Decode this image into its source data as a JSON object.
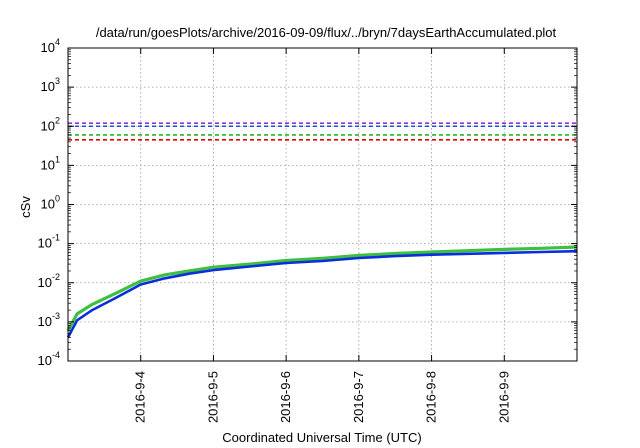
{
  "chart_data": {
    "type": "line",
    "title": "/data/run/goesPlots/archive/2016-09-09/flux/../bryn/7daysEarthAccumulated.plot",
    "xlabel": "Coordinated Universal Time (UTC)",
    "ylabel": "cSv",
    "xlim": [
      "2016-09-03",
      "2016-09-10"
    ],
    "x_ticks": [
      "2016-9-4",
      "2016-9-5",
      "2016-9-6",
      "2016-9-7",
      "2016-9-8",
      "2016-9-9"
    ],
    "yscale": "log",
    "ylim": [
      0.0001,
      10000
    ],
    "y_ticks": [
      {
        "base": "10",
        "exp": "-4"
      },
      {
        "base": "10",
        "exp": "-3"
      },
      {
        "base": "10",
        "exp": "-2"
      },
      {
        "base": "10",
        "exp": "-1"
      },
      {
        "base": "10",
        "exp": "0"
      },
      {
        "base": "10",
        "exp": "1"
      },
      {
        "base": "10",
        "exp": "2"
      },
      {
        "base": "10",
        "exp": "3"
      },
      {
        "base": "10",
        "exp": "4"
      }
    ],
    "grid": true,
    "threshold_lines": [
      {
        "value": 120,
        "color": "#9b2fd0",
        "style": "dashed"
      },
      {
        "value": 100,
        "color": "#1f4fd8",
        "style": "dashed"
      },
      {
        "value": 60,
        "color": "#22b822",
        "style": "dashed"
      },
      {
        "value": 45,
        "color": "#e00000",
        "style": "dashed"
      }
    ],
    "series": [
      {
        "color": "#3fbf3f",
        "x": [
          "2016-09-03 00:00",
          "2016-09-03 03:00",
          "2016-09-03 08:00",
          "2016-09-03 16:00",
          "2016-09-04 00:00",
          "2016-09-04 08:00",
          "2016-09-04 16:00",
          "2016-09-05 00:00",
          "2016-09-05 12:00",
          "2016-09-06 00:00",
          "2016-09-06 12:00",
          "2016-09-07 00:00",
          "2016-09-07 12:00",
          "2016-09-08 00:00",
          "2016-09-08 12:00",
          "2016-09-09 00:00",
          "2016-09-09 12:00",
          "2016-09-10 00:00"
        ],
        "values": [
          0.0006,
          0.0016,
          0.0028,
          0.0055,
          0.011,
          0.016,
          0.02,
          0.025,
          0.03,
          0.037,
          0.042,
          0.05,
          0.056,
          0.061,
          0.066,
          0.071,
          0.076,
          0.082
        ]
      },
      {
        "color": "#0a2de0",
        "x": [
          "2016-09-03 00:00",
          "2016-09-03 03:00",
          "2016-09-03 08:00",
          "2016-09-03 16:00",
          "2016-09-04 00:00",
          "2016-09-04 08:00",
          "2016-09-04 16:00",
          "2016-09-05 00:00",
          "2016-09-05 12:00",
          "2016-09-06 00:00",
          "2016-09-06 12:00",
          "2016-09-07 00:00",
          "2016-09-07 12:00",
          "2016-09-08 00:00",
          "2016-09-08 12:00",
          "2016-09-09 00:00",
          "2016-09-09 12:00",
          "2016-09-10 00:00"
        ],
        "values": [
          0.0004,
          0.0011,
          0.002,
          0.0042,
          0.009,
          0.013,
          0.017,
          0.021,
          0.026,
          0.032,
          0.036,
          0.043,
          0.048,
          0.052,
          0.055,
          0.058,
          0.061,
          0.064
        ]
      }
    ]
  }
}
